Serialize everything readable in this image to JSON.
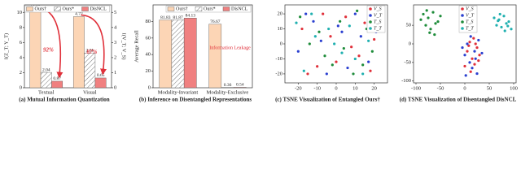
{
  "chart_data": [
    {
      "type": "bar",
      "title": "(a) Mutual Information Quantization",
      "categories": [
        "Textual",
        "Visual"
      ],
      "category_axes": [
        "y",
        "y2"
      ],
      "series": [
        {
          "name": "Ours†",
          "color": "#fcd5b5",
          "values": [
            10.39,
            4.72
          ]
        },
        {
          "name": "Ours*",
          "color": "#ffffff",
          "hatch": true,
          "values": [
            2.04,
            2.31
          ]
        },
        {
          "name": "DisNCL",
          "color": "#f08080",
          "values": [
            0.87,
            0.65
          ]
        }
      ],
      "ylabel": "I(Z_T; Y_T)",
      "y2label": "I(V_T; V_S)",
      "ylim": [
        0,
        11
      ],
      "yticks": [
        0,
        2,
        4,
        6,
        8,
        10
      ],
      "y2lim": [
        0,
        5.5
      ],
      "y2ticks": [
        0,
        1,
        2,
        3,
        4,
        5
      ],
      "annotations": [
        "92%",
        "87%"
      ],
      "legend": "upper center"
    },
    {
      "type": "bar",
      "title": "(b) Inference on Disentangled Representations",
      "categories": [
        "Modality-Invariant",
        "Modality-Exclusive"
      ],
      "series": [
        {
          "name": "Ours†",
          "color": "#fcd5b5",
          "values": [
            81.83,
            76.67
          ]
        },
        {
          "name": "Ours*",
          "color": "#ffffff",
          "hatch": true,
          "values": [
            81.87,
            0.36
          ]
        },
        {
          "name": "DisNCL",
          "color": "#f08080",
          "values": [
            84.13,
            0.54
          ]
        }
      ],
      "ylabel": "Average Recall",
      "ylim": [
        0,
        100
      ],
      "yticks": [
        0,
        20,
        40,
        60,
        80
      ],
      "annotations": [
        "Information Leakage"
      ],
      "legend": "upper right"
    },
    {
      "type": "scatter",
      "title": "(c) TSNE Visualization of Entangled Ours†",
      "xlim": [
        -27,
        27
      ],
      "xticks": [
        -20,
        -10,
        0,
        10,
        20
      ],
      "ylim": [
        -26,
        26
      ],
      "yticks": [
        -20,
        -10,
        0,
        10,
        20
      ],
      "legend": "upper right",
      "series": [
        {
          "name": "V_S",
          "color": "#e0303a",
          "x": [
            -18,
            -10,
            -3,
            5,
            12,
            20,
            -15,
            8,
            0,
            15,
            -7,
            18
          ],
          "values": [
            10,
            -15,
            5,
            18,
            -8,
            3,
            -20,
            -2,
            -12,
            14,
            20,
            -18
          ]
        },
        {
          "name": "V_T",
          "color": "#2a3fd0",
          "x": [
            -20,
            -12,
            -5,
            3,
            10,
            17,
            -8,
            6,
            13,
            -16,
            1,
            21
          ],
          "values": [
            -5,
            15,
            -20,
            8,
            20,
            -12,
            2,
            -16,
            5,
            20,
            12,
            8
          ]
        },
        {
          "name": "T_S",
          "color": "#1e8c3a",
          "x": [
            -14,
            -6,
            2,
            9,
            16,
            -19,
            -2,
            11,
            19,
            -9,
            4,
            14
          ],
          "values": [
            0,
            -8,
            15,
            -20,
            10,
            18,
            -14,
            22,
            -5,
            8,
            -3,
            -14
          ]
        },
        {
          "name": "T_T",
          "color": "#20b0b0",
          "x": [
            -17,
            -11,
            -1,
            7,
            14,
            22,
            -4,
            10,
            -13,
            3,
            17,
            -21
          ],
          "values": [
            -18,
            5,
            0,
            12,
            -20,
            15,
            10,
            -10,
            20,
            -6,
            2,
            14
          ]
        }
      ]
    },
    {
      "type": "scatter",
      "title": "(d) TSNE Visualization of Disentangled DisNCL",
      "xlim": [
        -105,
        105
      ],
      "xticks": [
        -100,
        -50,
        0,
        50,
        100
      ],
      "ylim": [
        -105,
        105
      ],
      "yticks": [
        -100,
        -50,
        0,
        50
      ],
      "legend": "upper center",
      "series": [
        {
          "name": "V_S",
          "color": "#e0303a",
          "x": [
            5,
            15,
            25,
            10,
            20,
            30,
            0,
            12,
            22,
            18,
            8,
            28
          ],
          "values": [
            -20,
            -40,
            -10,
            5,
            -55,
            -30,
            -60,
            -75,
            0,
            15,
            -5,
            -45
          ]
        },
        {
          "name": "V_T",
          "color": "#2a3fd0",
          "x": [
            0,
            10,
            20,
            28,
            -5,
            15,
            25,
            5,
            35,
            12,
            22,
            2
          ],
          "values": [
            -30,
            -50,
            -20,
            10,
            -10,
            -65,
            -80,
            0,
            -25,
            20,
            -40,
            -85
          ]
        },
        {
          "name": "T_S",
          "color": "#1e8c3a",
          "x": [
            -85,
            -75,
            -65,
            -55,
            -80,
            -70,
            -60,
            -50,
            -90,
            -72,
            -62,
            -78
          ],
          "values": [
            80,
            70,
            85,
            60,
            50,
            40,
            55,
            75,
            65,
            30,
            25,
            90
          ]
        },
        {
          "name": "T_T",
          "color": "#20b0b0",
          "x": [
            60,
            70,
            80,
            90,
            65,
            75,
            85,
            95,
            72,
            82,
            68,
            88
          ],
          "values": [
            70,
            65,
            75,
            60,
            50,
            45,
            55,
            40,
            80,
            35,
            62,
            48
          ]
        }
      ]
    }
  ]
}
